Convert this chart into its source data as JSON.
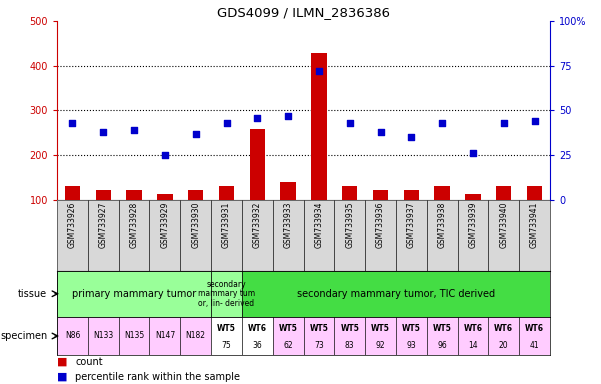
{
  "title": "GDS4099 / ILMN_2836386",
  "samples": [
    "GSM733926",
    "GSM733927",
    "GSM733928",
    "GSM733929",
    "GSM733930",
    "GSM733931",
    "GSM733932",
    "GSM733933",
    "GSM733934",
    "GSM733935",
    "GSM733936",
    "GSM733937",
    "GSM733938",
    "GSM733939",
    "GSM733940",
    "GSM733941"
  ],
  "counts": [
    130,
    122,
    122,
    112,
    122,
    130,
    258,
    140,
    428,
    130,
    122,
    122,
    130,
    112,
    130,
    130
  ],
  "percentile_pct": [
    43,
    38,
    39,
    25,
    37,
    43,
    46,
    47,
    72,
    43,
    38,
    35,
    43,
    26,
    43,
    44
  ],
  "ylim_left": [
    100,
    500
  ],
  "ylim_right": [
    0,
    100
  ],
  "yticks_left": [
    100,
    200,
    300,
    400,
    500
  ],
  "yticks_right": [
    0,
    25,
    50,
    75,
    100
  ],
  "right_tick_labels": [
    "0",
    "25",
    "50",
    "75",
    "100%"
  ],
  "tissue_groups": [
    {
      "label": "primary mammary tumor",
      "start": 0,
      "end": 4,
      "color": "#99ff99"
    },
    {
      "label": "secondary\nmammary tum\nor, lin- derived",
      "start": 5,
      "end": 5,
      "color": "#99ff99"
    },
    {
      "label": "secondary mammary tumor, TIC derived",
      "start": 6,
      "end": 15,
      "color": "#44dd44"
    }
  ],
  "specimen_labels_top": [
    "N86",
    "N133",
    "N135",
    "N147",
    "N182",
    "WT5",
    "WT6",
    "WT5",
    "WT5",
    "WT5",
    "WT5",
    "WT5",
    "WT5",
    "WT6",
    "WT6",
    "WT6"
  ],
  "specimen_labels_bot": [
    "",
    "",
    "",
    "",
    "",
    "75",
    "36",
    "62",
    "73",
    "83",
    "92",
    "93",
    "96",
    "14",
    "20",
    "41"
  ],
  "specimen_colors": [
    "#ffccff",
    "#ffccff",
    "#ffccff",
    "#ffccff",
    "#ffccff",
    "#ffffff",
    "#ffffff",
    "#ffccff",
    "#ffccff",
    "#ffccff",
    "#ffccff",
    "#ffccff",
    "#ffccff",
    "#ffccff",
    "#ffccff",
    "#ffccff"
  ],
  "bar_color": "#cc0000",
  "dot_color": "#0000cc",
  "tick_bg_color": "#d8d8d8",
  "left_axis_color": "#cc0000",
  "right_axis_color": "#0000cc",
  "grid_color": "#000000",
  "title_color": "#000000",
  "legend_square_size": 8,
  "bar_width": 0.5
}
